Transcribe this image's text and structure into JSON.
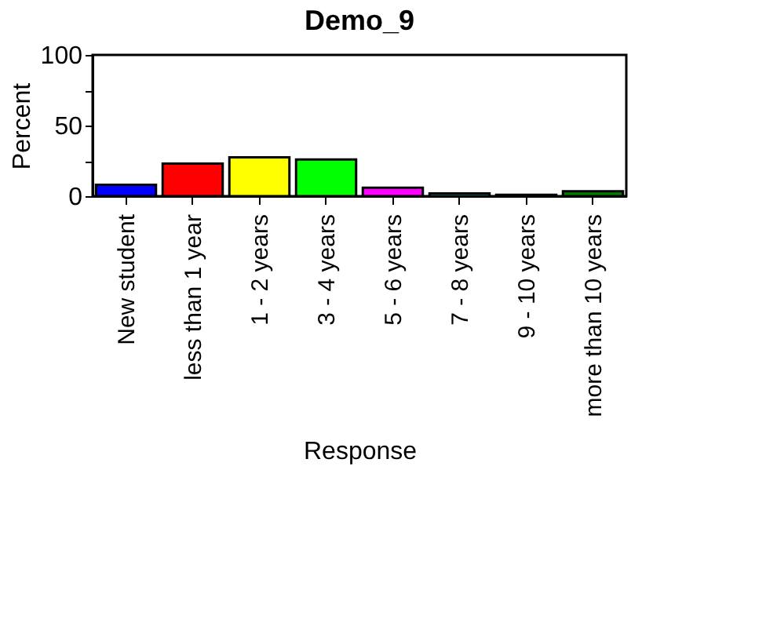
{
  "chart_data": {
    "type": "bar",
    "title": "Demo_9",
    "xlabel": "Response",
    "ylabel": "Percent",
    "categories": [
      "New student",
      "less than 1 year",
      "1 - 2 years",
      "3 - 4 years",
      "5 - 6 years",
      "7 - 8 years",
      "9 - 10 years",
      "more than 10 years"
    ],
    "values": [
      8,
      23,
      27.5,
      26,
      6,
      2,
      1,
      3.5
    ],
    "colors": [
      "#0000ff",
      "#ff0000",
      "#ffff00",
      "#00ff00",
      "#ff00ff",
      "#00c0c0",
      "#000060",
      "#008000"
    ],
    "ylim": [
      0,
      100
    ],
    "yticks": [
      0,
      {
        "value": 25,
        "label": null
      },
      50,
      {
        "value": 75,
        "label": null
      },
      100
    ],
    "grid": false
  }
}
